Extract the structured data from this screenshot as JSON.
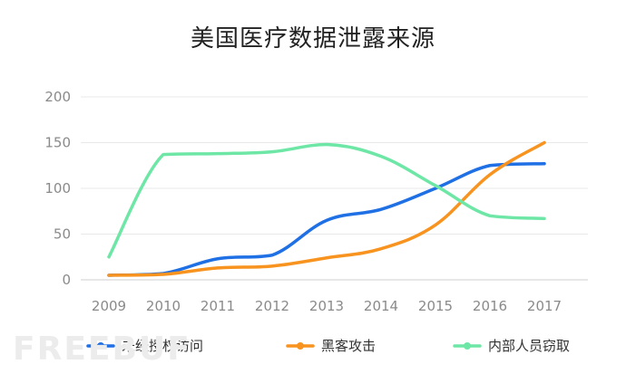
{
  "chart_data": {
    "type": "line",
    "title": "美国医疗数据泄露来源",
    "x": [
      "2009",
      "2010",
      "2011",
      "2012",
      "2013",
      "2014",
      "2015",
      "2016",
      "2017"
    ],
    "ylim": [
      0,
      200
    ],
    "yticks": [
      0,
      50,
      100,
      150,
      200
    ],
    "grid": true,
    "legend_position": "bottom",
    "series": [
      {
        "name": "未经授权访问",
        "color": "#1f6fe5",
        "values": [
          5,
          7,
          23,
          27,
          65,
          77,
          100,
          125,
          127
        ]
      },
      {
        "name": "黑客攻击",
        "color": "#f7931e",
        "values": [
          5,
          6,
          13,
          15,
          24,
          34,
          60,
          115,
          150
        ]
      },
      {
        "name": "内部人员窃取",
        "color": "#6ee7a6",
        "values": [
          25,
          137,
          138,
          140,
          148,
          135,
          103,
          70,
          67
        ]
      }
    ]
  },
  "watermark": "FREEBUF"
}
